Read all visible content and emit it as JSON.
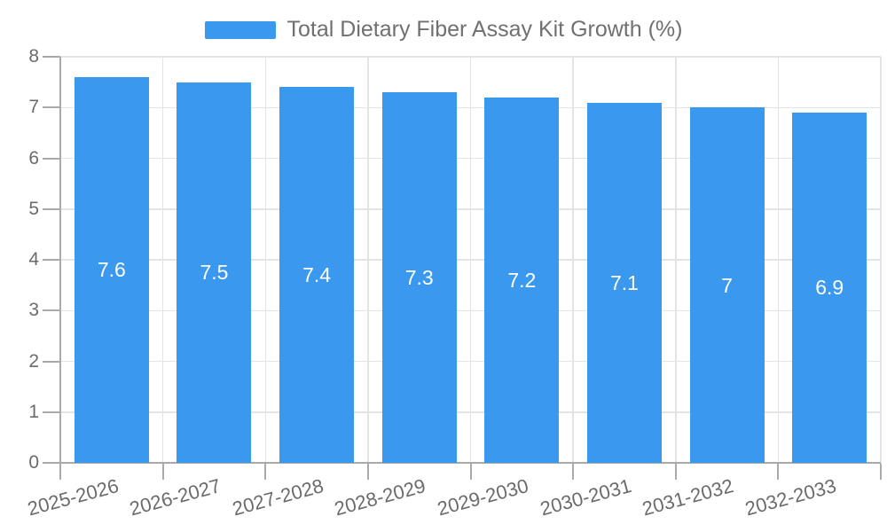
{
  "chart_data": {
    "type": "bar",
    "title": "Total Dietary Fiber Assay Kit Growth (%)",
    "legend": "Total Dietary Fiber Assay Kit Growth (%)",
    "legend_position": "top-center",
    "categories": [
      "2025-2026",
      "2026-2027",
      "2027-2028",
      "2028-2029",
      "2029-2030",
      "2030-2031",
      "2031-2032",
      "2032-2033"
    ],
    "values": [
      7.6,
      7.5,
      7.4,
      7.3,
      7.2,
      7.1,
      7,
      6.9
    ],
    "bar_labels": [
      "7.6",
      "7.5",
      "7.4",
      "7.3",
      "7.2",
      "7.1",
      "7",
      "6.9"
    ],
    "xlabel": "",
    "ylabel": "",
    "ylim": [
      0,
      8
    ],
    "y_ticks": [
      0,
      1,
      2,
      3,
      4,
      5,
      6,
      7,
      8
    ],
    "grid": true,
    "x_label_rotation_deg": -15,
    "colors": {
      "bar": "#3A99EE",
      "bar_label": "#FFFFFF",
      "grid_line": "#E4E4E4",
      "axis_line": "#AAAAAA",
      "tick_label": "#6B6B6B",
      "legend_text": "#707070",
      "background": "#FFFFFF"
    }
  }
}
